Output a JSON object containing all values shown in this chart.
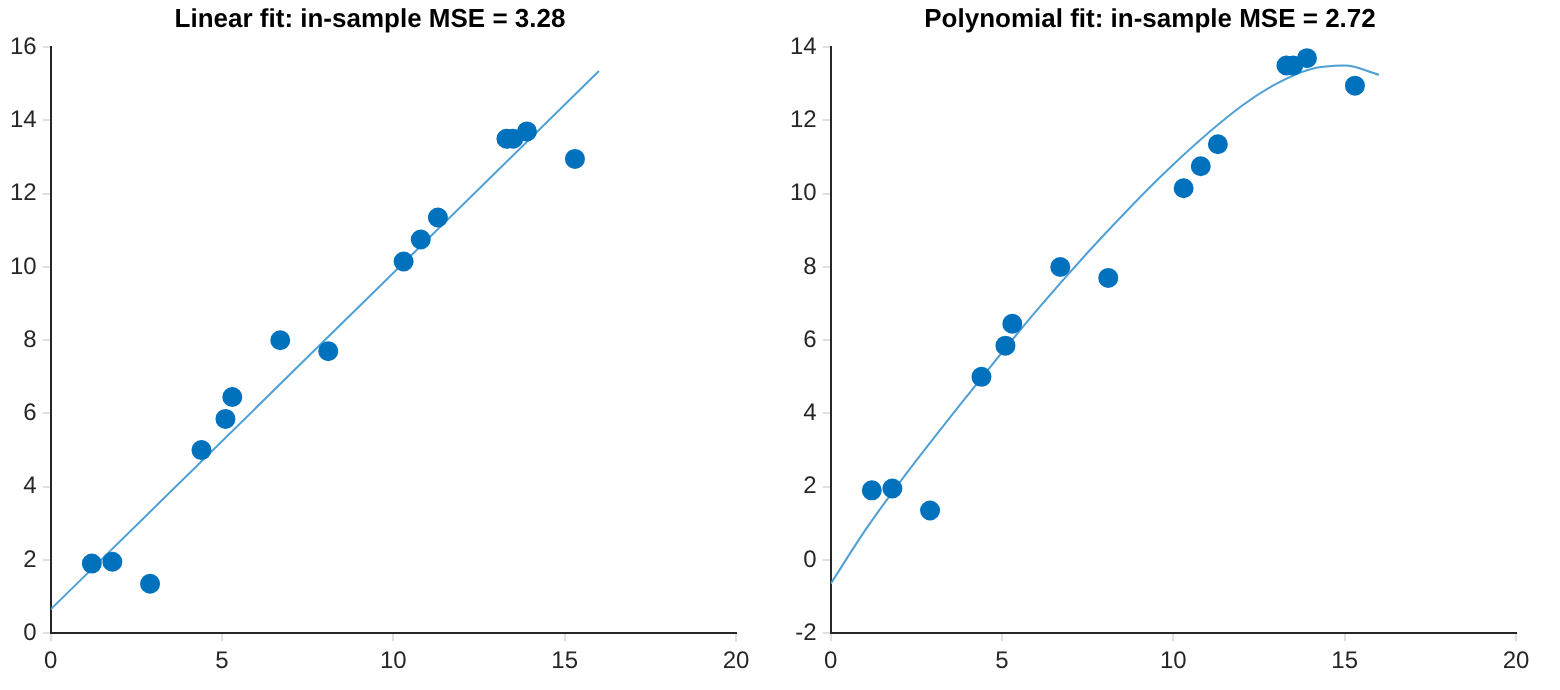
{
  "chart_data": [
    {
      "type": "scatter",
      "title": "Linear fit: in-sample MSE = 3.28",
      "xlim": [
        0,
        20
      ],
      "ylim": [
        0,
        16
      ],
      "xticks": [
        0,
        5,
        10,
        15,
        20
      ],
      "yticks": [
        0,
        2,
        4,
        6,
        8,
        10,
        12,
        14,
        16
      ],
      "grid": false,
      "series": [
        {
          "marker": "circle",
          "color": "#0072bd",
          "x": [
            1.2,
            1.8,
            2.9,
            4.4,
            5.1,
            5.3,
            6.7,
            8.1,
            10.3,
            10.8,
            11.3,
            13.3,
            13.5,
            13.9,
            15.3
          ],
          "values": [
            1.9,
            1.95,
            1.35,
            5.0,
            5.85,
            6.45,
            8.0,
            7.7,
            10.15,
            10.75,
            11.35,
            13.5,
            13.5,
            13.7,
            12.95
          ]
        },
        {
          "type": "line",
          "color": "#4d9fd6",
          "x": [
            0,
            16
          ],
          "values": [
            0.65,
            15.35
          ]
        }
      ]
    },
    {
      "type": "scatter",
      "title": "Polynomial fit: in-sample MSE = 2.72",
      "xlim": [
        0,
        20
      ],
      "ylim": [
        -2,
        14
      ],
      "xticks": [
        0,
        5,
        10,
        15,
        20
      ],
      "yticks": [
        -2,
        0,
        2,
        4,
        6,
        8,
        10,
        12,
        14
      ],
      "grid": false,
      "series": [
        {
          "marker": "circle",
          "color": "#0072bd",
          "x": [
            1.2,
            1.8,
            2.9,
            4.4,
            5.1,
            5.3,
            6.7,
            8.1,
            10.3,
            10.8,
            11.3,
            13.3,
            13.5,
            13.9,
            15.3
          ],
          "values": [
            1.9,
            1.95,
            1.35,
            5.0,
            5.85,
            6.45,
            8.0,
            7.7,
            10.15,
            10.75,
            11.35,
            13.5,
            13.5,
            13.7,
            12.95
          ]
        },
        {
          "type": "line",
          "color": "#4d9fd6",
          "x": [
            0,
            1,
            2,
            4,
            6,
            8,
            10,
            12,
            13,
            14,
            15,
            16
          ],
          "values": [
            -0.65,
            0.8,
            2.1,
            4.5,
            6.8,
            8.9,
            10.8,
            12.4,
            13.0,
            13.4,
            13.5,
            13.25
          ]
        }
      ]
    }
  ]
}
